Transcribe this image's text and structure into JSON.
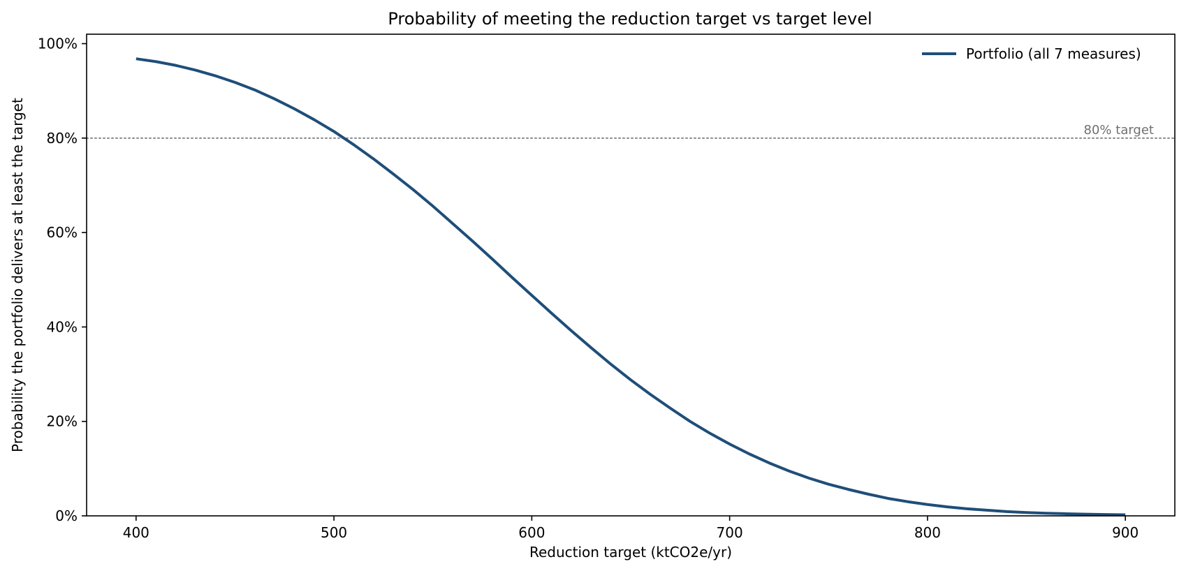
{
  "chart_data": {
    "type": "line",
    "title": "Probability of meeting the reduction target  vs  target level",
    "xlabel": "Reduction target  (ktCO2e/yr)",
    "ylabel": "Probability the portfolio delivers at least the target",
    "xlim": [
      375,
      925
    ],
    "ylim": [
      0,
      1.02
    ],
    "x_ticks": [
      400,
      500,
      600,
      700,
      800,
      900
    ],
    "x_tick_labels": [
      "400",
      "500",
      "600",
      "700",
      "800",
      "900"
    ],
    "y_ticks": [
      0,
      0.2,
      0.4,
      0.6,
      0.8,
      1.0
    ],
    "y_tick_labels": [
      "0%",
      "20%",
      "40%",
      "60%",
      "80%",
      "100%"
    ],
    "grid": false,
    "legend_position": "top-right",
    "series": [
      {
        "name": "Portfolio (all 7 measures)",
        "color": "#1f4e79",
        "x": [
          400,
          410,
          420,
          430,
          440,
          450,
          460,
          470,
          480,
          490,
          500,
          510,
          520,
          530,
          540,
          550,
          560,
          570,
          580,
          590,
          600,
          610,
          620,
          630,
          640,
          650,
          660,
          670,
          680,
          690,
          700,
          710,
          720,
          730,
          740,
          750,
          760,
          770,
          780,
          790,
          800,
          810,
          820,
          830,
          840,
          850,
          860,
          870,
          880,
          890,
          900
        ],
        "y": [
          0.968,
          0.962,
          0.954,
          0.944,
          0.932,
          0.918,
          0.902,
          0.883,
          0.862,
          0.839,
          0.814,
          0.786,
          0.756,
          0.724,
          0.691,
          0.656,
          0.619,
          0.582,
          0.544,
          0.505,
          0.467,
          0.429,
          0.392,
          0.356,
          0.321,
          0.288,
          0.257,
          0.228,
          0.2,
          0.175,
          0.152,
          0.131,
          0.112,
          0.095,
          0.08,
          0.067,
          0.056,
          0.046,
          0.037,
          0.03,
          0.024,
          0.019,
          0.015,
          0.012,
          0.009,
          0.007,
          0.0055,
          0.0045,
          0.0035,
          0.0028,
          0.0022
        ]
      }
    ],
    "reference_lines": [
      {
        "y": 0.8,
        "label": "80% target",
        "color": "#888888",
        "style": "dotted"
      }
    ]
  }
}
